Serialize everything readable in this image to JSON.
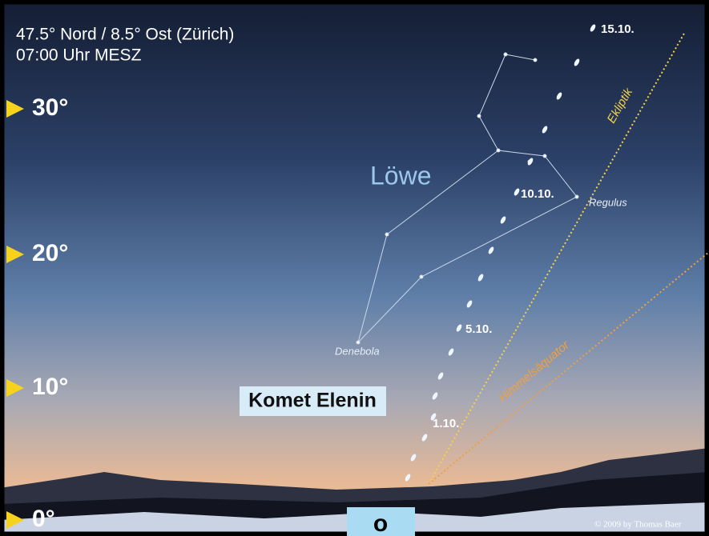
{
  "header": {
    "location": "47.5° Nord / 8.5° Ost (Zürich)",
    "time": "07:00 Uhr MESZ"
  },
  "altitude_labels": [
    "0°",
    "10°",
    "20°",
    "30°"
  ],
  "constellation": {
    "name": "Löwe",
    "stars": [
      "Regulus",
      "Denebola"
    ]
  },
  "lines": [
    "Ekliptik",
    "Himmelsäquator"
  ],
  "comet": {
    "name": "Komet Elenin",
    "dates": [
      "1.10.",
      "5.10.",
      "10.10.",
      "15.10."
    ]
  },
  "direction": "o",
  "credit": "© 2009 by Thomas Baer"
}
